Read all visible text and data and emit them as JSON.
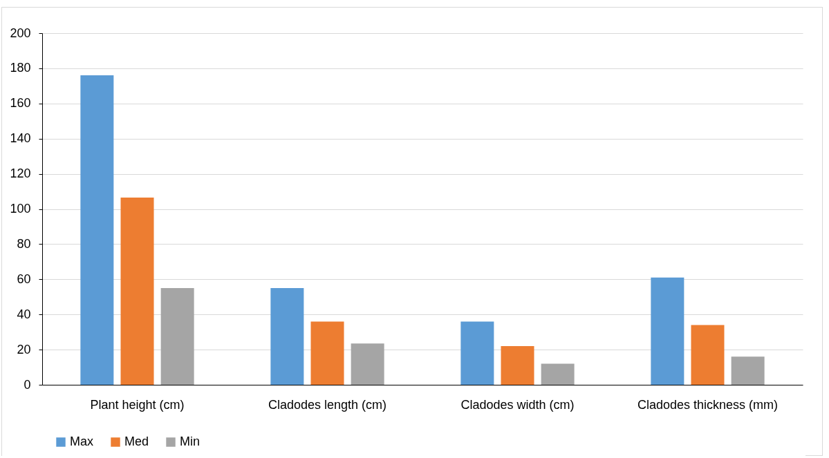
{
  "chart_data": {
    "type": "bar",
    "categories": [
      "Plant height (cm)",
      "Cladodes length (cm)",
      "Cladodes width (cm)",
      "Cladodes thickness (mm)"
    ],
    "series": [
      {
        "name": "Max",
        "color": "#5b9bd5",
        "values": [
          176,
          55,
          36,
          61
        ]
      },
      {
        "name": "Med",
        "color": "#ed7d31",
        "values": [
          106.5,
          36,
          22,
          34
        ]
      },
      {
        "name": "Min",
        "color": "#a5a5a5",
        "values": [
          55,
          23.5,
          12,
          16
        ]
      }
    ],
    "ylim": [
      0,
      200
    ],
    "yticks": [
      0,
      20,
      40,
      60,
      80,
      100,
      120,
      140,
      160,
      180,
      200
    ],
    "grid": "y",
    "legend": "bottom"
  }
}
